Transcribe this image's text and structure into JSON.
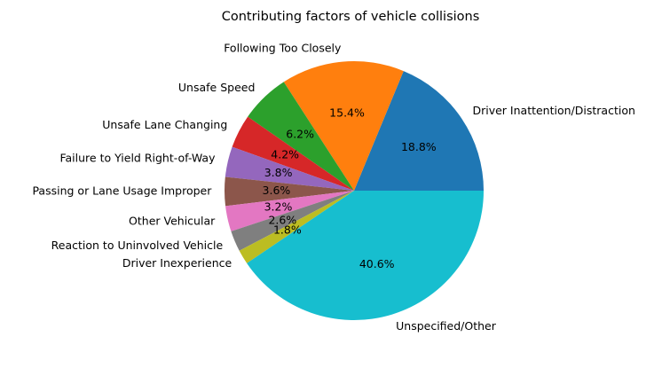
{
  "chart_data": {
    "type": "pie",
    "title": "Contributing factors of vehicle collisions",
    "start_angle_deg": 0,
    "direction": "counterclockwise",
    "labels": [
      "Driver Inattention/Distraction",
      "Following Too Closely",
      "Unsafe Speed",
      "Unsafe Lane Changing",
      "Failure to Yield Right-of-Way",
      "Passing or Lane Usage Improper",
      "Other Vehicular",
      "Reaction to Uninvolved Vehicle",
      "Driver Inexperience",
      "Unspecified/Other"
    ],
    "values": [
      18.8,
      15.4,
      6.2,
      4.2,
      3.8,
      3.6,
      3.2,
      2.6,
      1.8,
      40.6
    ],
    "percent_labels": [
      "18.8%",
      "15.4%",
      "6.2%",
      "4.2%",
      "3.8%",
      "3.6%",
      "3.2%",
      "2.6%",
      "1.8%",
      "40.6%"
    ],
    "colors": [
      "#1f77b4",
      "#ff7f0e",
      "#2ca02c",
      "#d62728",
      "#9467bd",
      "#8c564b",
      "#e377c2",
      "#7f7f7f",
      "#bcbd22",
      "#17becf"
    ]
  }
}
